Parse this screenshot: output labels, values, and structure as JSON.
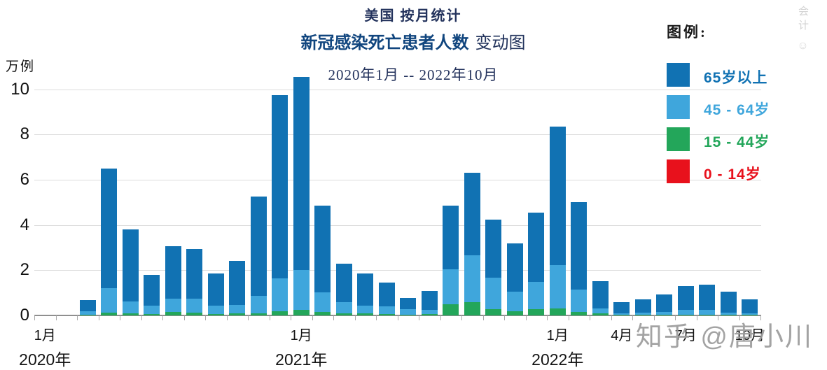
{
  "title": {
    "line1": "美国 按月统计",
    "line2_bold": "新冠感染死亡患者人数",
    "line2_tail": "变动图",
    "date_range": "2020年1月 -- 2022年10月"
  },
  "y_axis": {
    "unit_label": "万例",
    "ticks": [
      0,
      2,
      4,
      6,
      8,
      10
    ]
  },
  "legend": {
    "heading": "图例:",
    "items": [
      {
        "label": "65岁以上",
        "color": "#1172b3"
      },
      {
        "label": "45 - 64岁",
        "color": "#3fa6dc"
      },
      {
        "label": "15 - 44岁",
        "color": "#23a65a"
      },
      {
        "label": "0 - 14岁",
        "color": "#e8111c"
      }
    ]
  },
  "watermarks": {
    "bottom_right": "知乎 @唐小川",
    "top_right_vertical": "会计",
    "mascot": "☺"
  },
  "chart_data": {
    "type": "bar",
    "stacked": true,
    "title": "美国 按月统计 新冠感染死亡患者人数 变动图",
    "subtitle": "2020年1月 -- 2022年10月",
    "ylabel": "万例",
    "ylim": [
      0,
      10.8
    ],
    "grid": true,
    "legend_position": "top-right",
    "x": [
      "2020-01",
      "2020-02",
      "2020-03",
      "2020-04",
      "2020-05",
      "2020-06",
      "2020-07",
      "2020-08",
      "2020-09",
      "2020-10",
      "2020-11",
      "2020-12",
      "2021-01",
      "2021-02",
      "2021-03",
      "2021-04",
      "2021-05",
      "2021-06",
      "2021-07",
      "2021-08",
      "2021-09",
      "2021-10",
      "2021-11",
      "2021-12",
      "2022-01",
      "2022-02",
      "2022-03",
      "2022-04",
      "2022-05",
      "2022-06",
      "2022-07",
      "2022-08",
      "2022-09",
      "2022-10"
    ],
    "x_tick_labels": [
      {
        "index": 0,
        "month": "1月",
        "year": "2020年"
      },
      {
        "index": 12,
        "month": "1月",
        "year": "2021年"
      },
      {
        "index": 24,
        "month": "1月",
        "year": "2022年"
      },
      {
        "index": 27,
        "month": "4月"
      },
      {
        "index": 30,
        "month": "7月"
      },
      {
        "index": 33,
        "month": "10月"
      }
    ],
    "stack_order": "bottom_to_top",
    "series": [
      {
        "name": "0 - 14岁",
        "color": "#e8111c",
        "values": [
          0,
          0,
          0,
          0,
          0,
          0,
          0,
          0,
          0,
          0,
          0,
          0,
          0,
          0,
          0,
          0,
          0,
          0,
          0,
          0,
          0,
          0,
          0,
          0,
          0,
          0,
          0,
          0,
          0,
          0,
          0,
          0,
          0,
          0
        ]
      },
      {
        "name": "15 - 44岁",
        "color": "#23a65a",
        "values": [
          0,
          0,
          0.03,
          0.12,
          0.08,
          0.05,
          0.15,
          0.13,
          0.06,
          0.08,
          0.1,
          0.18,
          0.25,
          0.15,
          0.08,
          0.08,
          0.07,
          0.04,
          0.05,
          0.5,
          0.6,
          0.27,
          0.2,
          0.28,
          0.32,
          0.15,
          0.08,
          0.02,
          0.02,
          0.03,
          0.04,
          0.04,
          0.03,
          0.02
        ]
      },
      {
        "name": "45 - 64岁",
        "color": "#3fa6dc",
        "values": [
          0,
          0,
          0.15,
          1.1,
          0.55,
          0.38,
          0.6,
          0.6,
          0.37,
          0.38,
          0.77,
          1.45,
          1.75,
          0.87,
          0.5,
          0.35,
          0.33,
          0.24,
          0.2,
          1.55,
          2.05,
          1.4,
          0.85,
          1.2,
          1.9,
          1.0,
          0.22,
          0.08,
          0.1,
          0.14,
          0.22,
          0.22,
          0.1,
          0.07
        ]
      },
      {
        "name": "65岁以上",
        "color": "#1172b3",
        "values": [
          0,
          0,
          0.5,
          5.28,
          3.17,
          1.37,
          2.3,
          2.22,
          1.44,
          1.96,
          4.38,
          8.12,
          8.55,
          3.83,
          1.72,
          1.42,
          1.05,
          0.5,
          0.83,
          2.8,
          3.65,
          2.58,
          2.15,
          3.07,
          6.13,
          3.85,
          1.22,
          0.48,
          0.6,
          0.75,
          1.04,
          1.09,
          0.92,
          0.63
        ]
      }
    ]
  }
}
